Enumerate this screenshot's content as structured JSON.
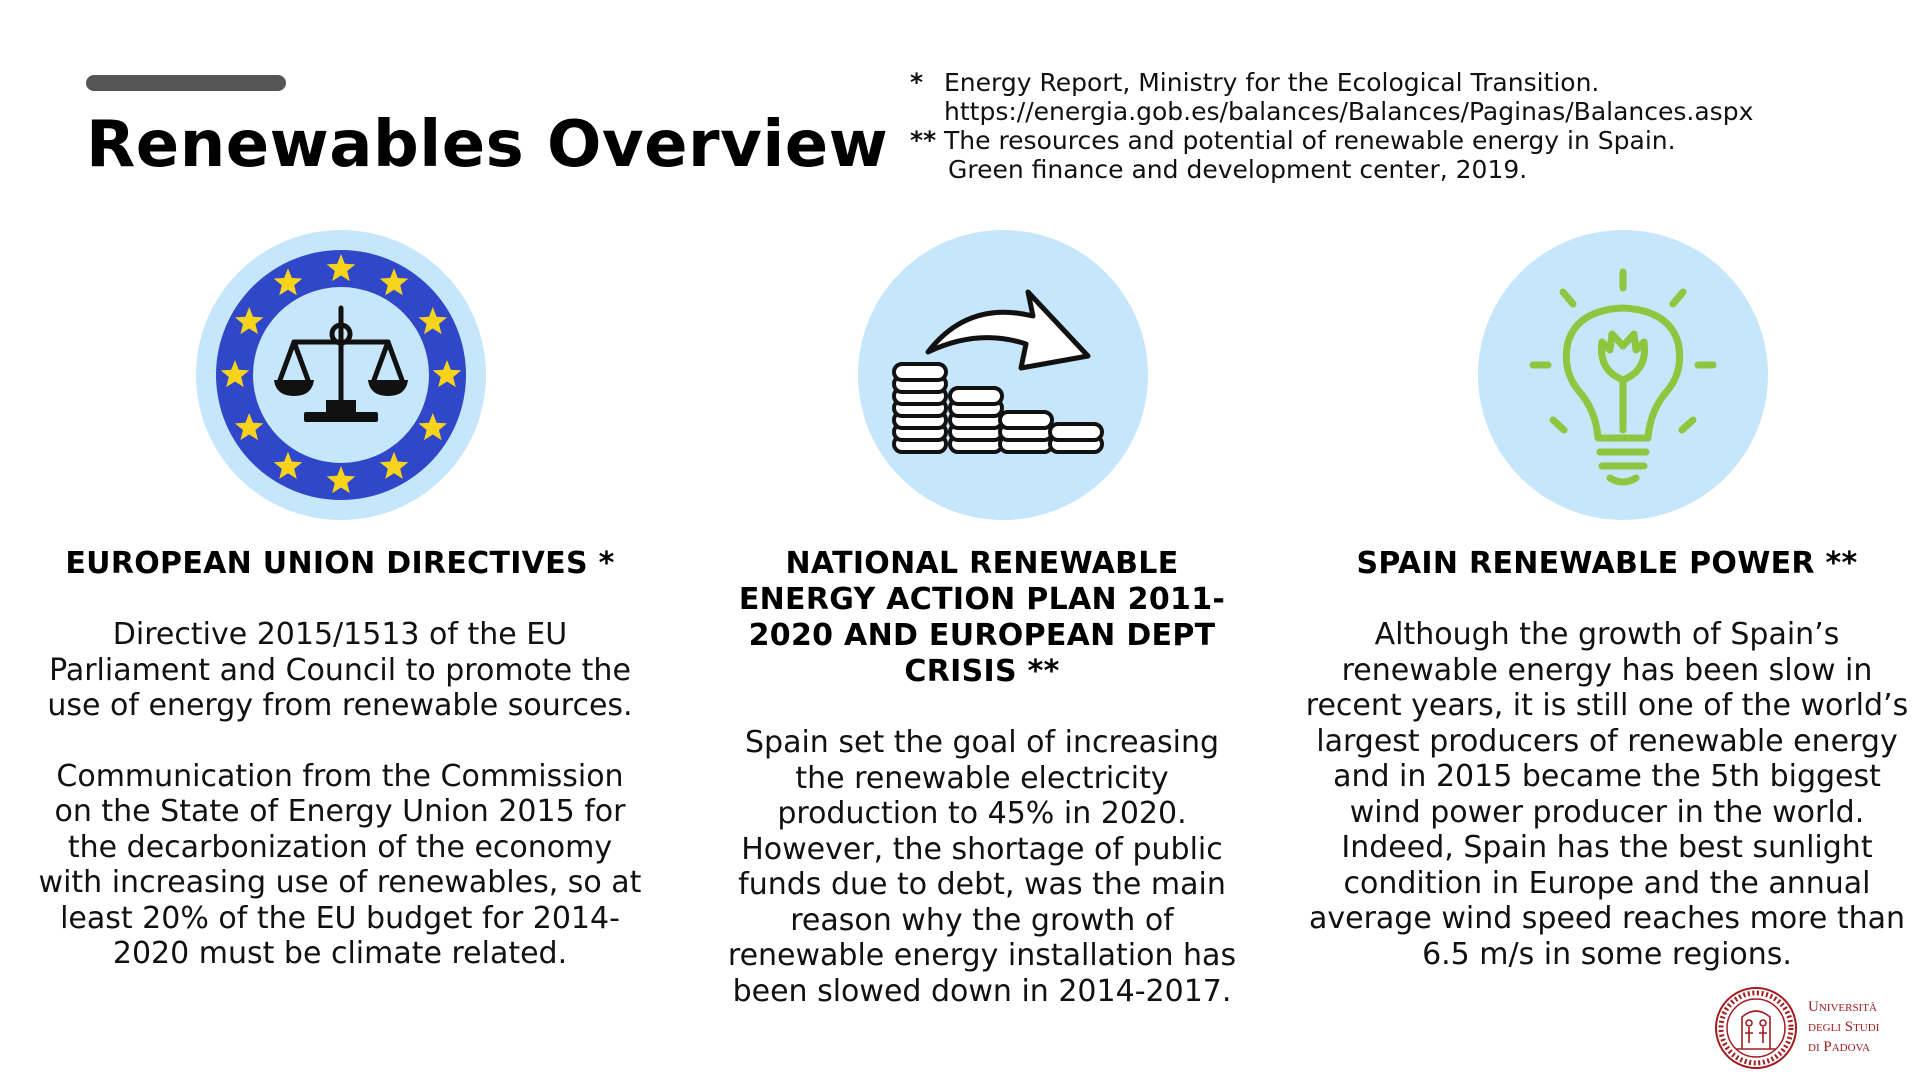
{
  "page": {
    "title": "Renewables Overview"
  },
  "references": [
    {
      "mark": "*",
      "lines": [
        "Energy Report, Ministry for the Ecological Transition.",
        "https://energia.gob.es/balances/Balances/Paginas/Balances.aspx"
      ]
    },
    {
      "mark": "**",
      "lines": [
        "The resources and potential of renewable energy in Spain.",
        "Green finance and development center, 2019."
      ]
    }
  ],
  "colors": {
    "circle_background": "#c6e6fb",
    "eu_blue": "#2f47c8",
    "eu_star": "#f7d31c",
    "bulb_green": "#8dc63f",
    "university_red": "#a31b1f"
  },
  "icons": [
    "eu-justice-scales-icon",
    "coins-arrow-icon",
    "lightbulb-leaf-icon"
  ],
  "columns": [
    {
      "heading": "EUROPEAN UNION DIRECTIVES *",
      "paragraphs": [
        "Directive 2015/1513 of the EU Parliament and Council to promote the use of energy from renewable sources.",
        "Communication from the Commission on the State of Energy Union 2015 for the decarbonization of the economy with increasing use of renewables, so at least 20% of the EU budget for 2014-2020 must be climate related."
      ]
    },
    {
      "heading": "NATIONAL RENEWABLE ENERGY ACTION PLAN 2011-2020 AND EUROPEAN DEPT CRISIS **",
      "paragraphs": [
        "Spain set the goal of increasing the renewable electricity production to 45% in 2020. However, the shortage of public funds due to debt, was the main reason why the growth of renewable energy installation has been slowed down in 2014-2017."
      ]
    },
    {
      "heading": "SPAIN RENEWABLE POWER **",
      "paragraphs": [
        "Although the growth of Spain’s renewable energy has been slow in recent years, it is still one of the world’s largest producers of renewable energy and in 2015 became the 5th biggest wind power producer in the world. Indeed, Spain has the best sunlight condition in Europe and the annual average wind speed reaches more than 6.5 m/s in some regions."
      ]
    }
  ],
  "logo": {
    "name_lines": [
      "Università",
      "degli Studi",
      "di Padova"
    ],
    "seal_text": "UNIVERSITAS STUDII PATAVINI"
  }
}
